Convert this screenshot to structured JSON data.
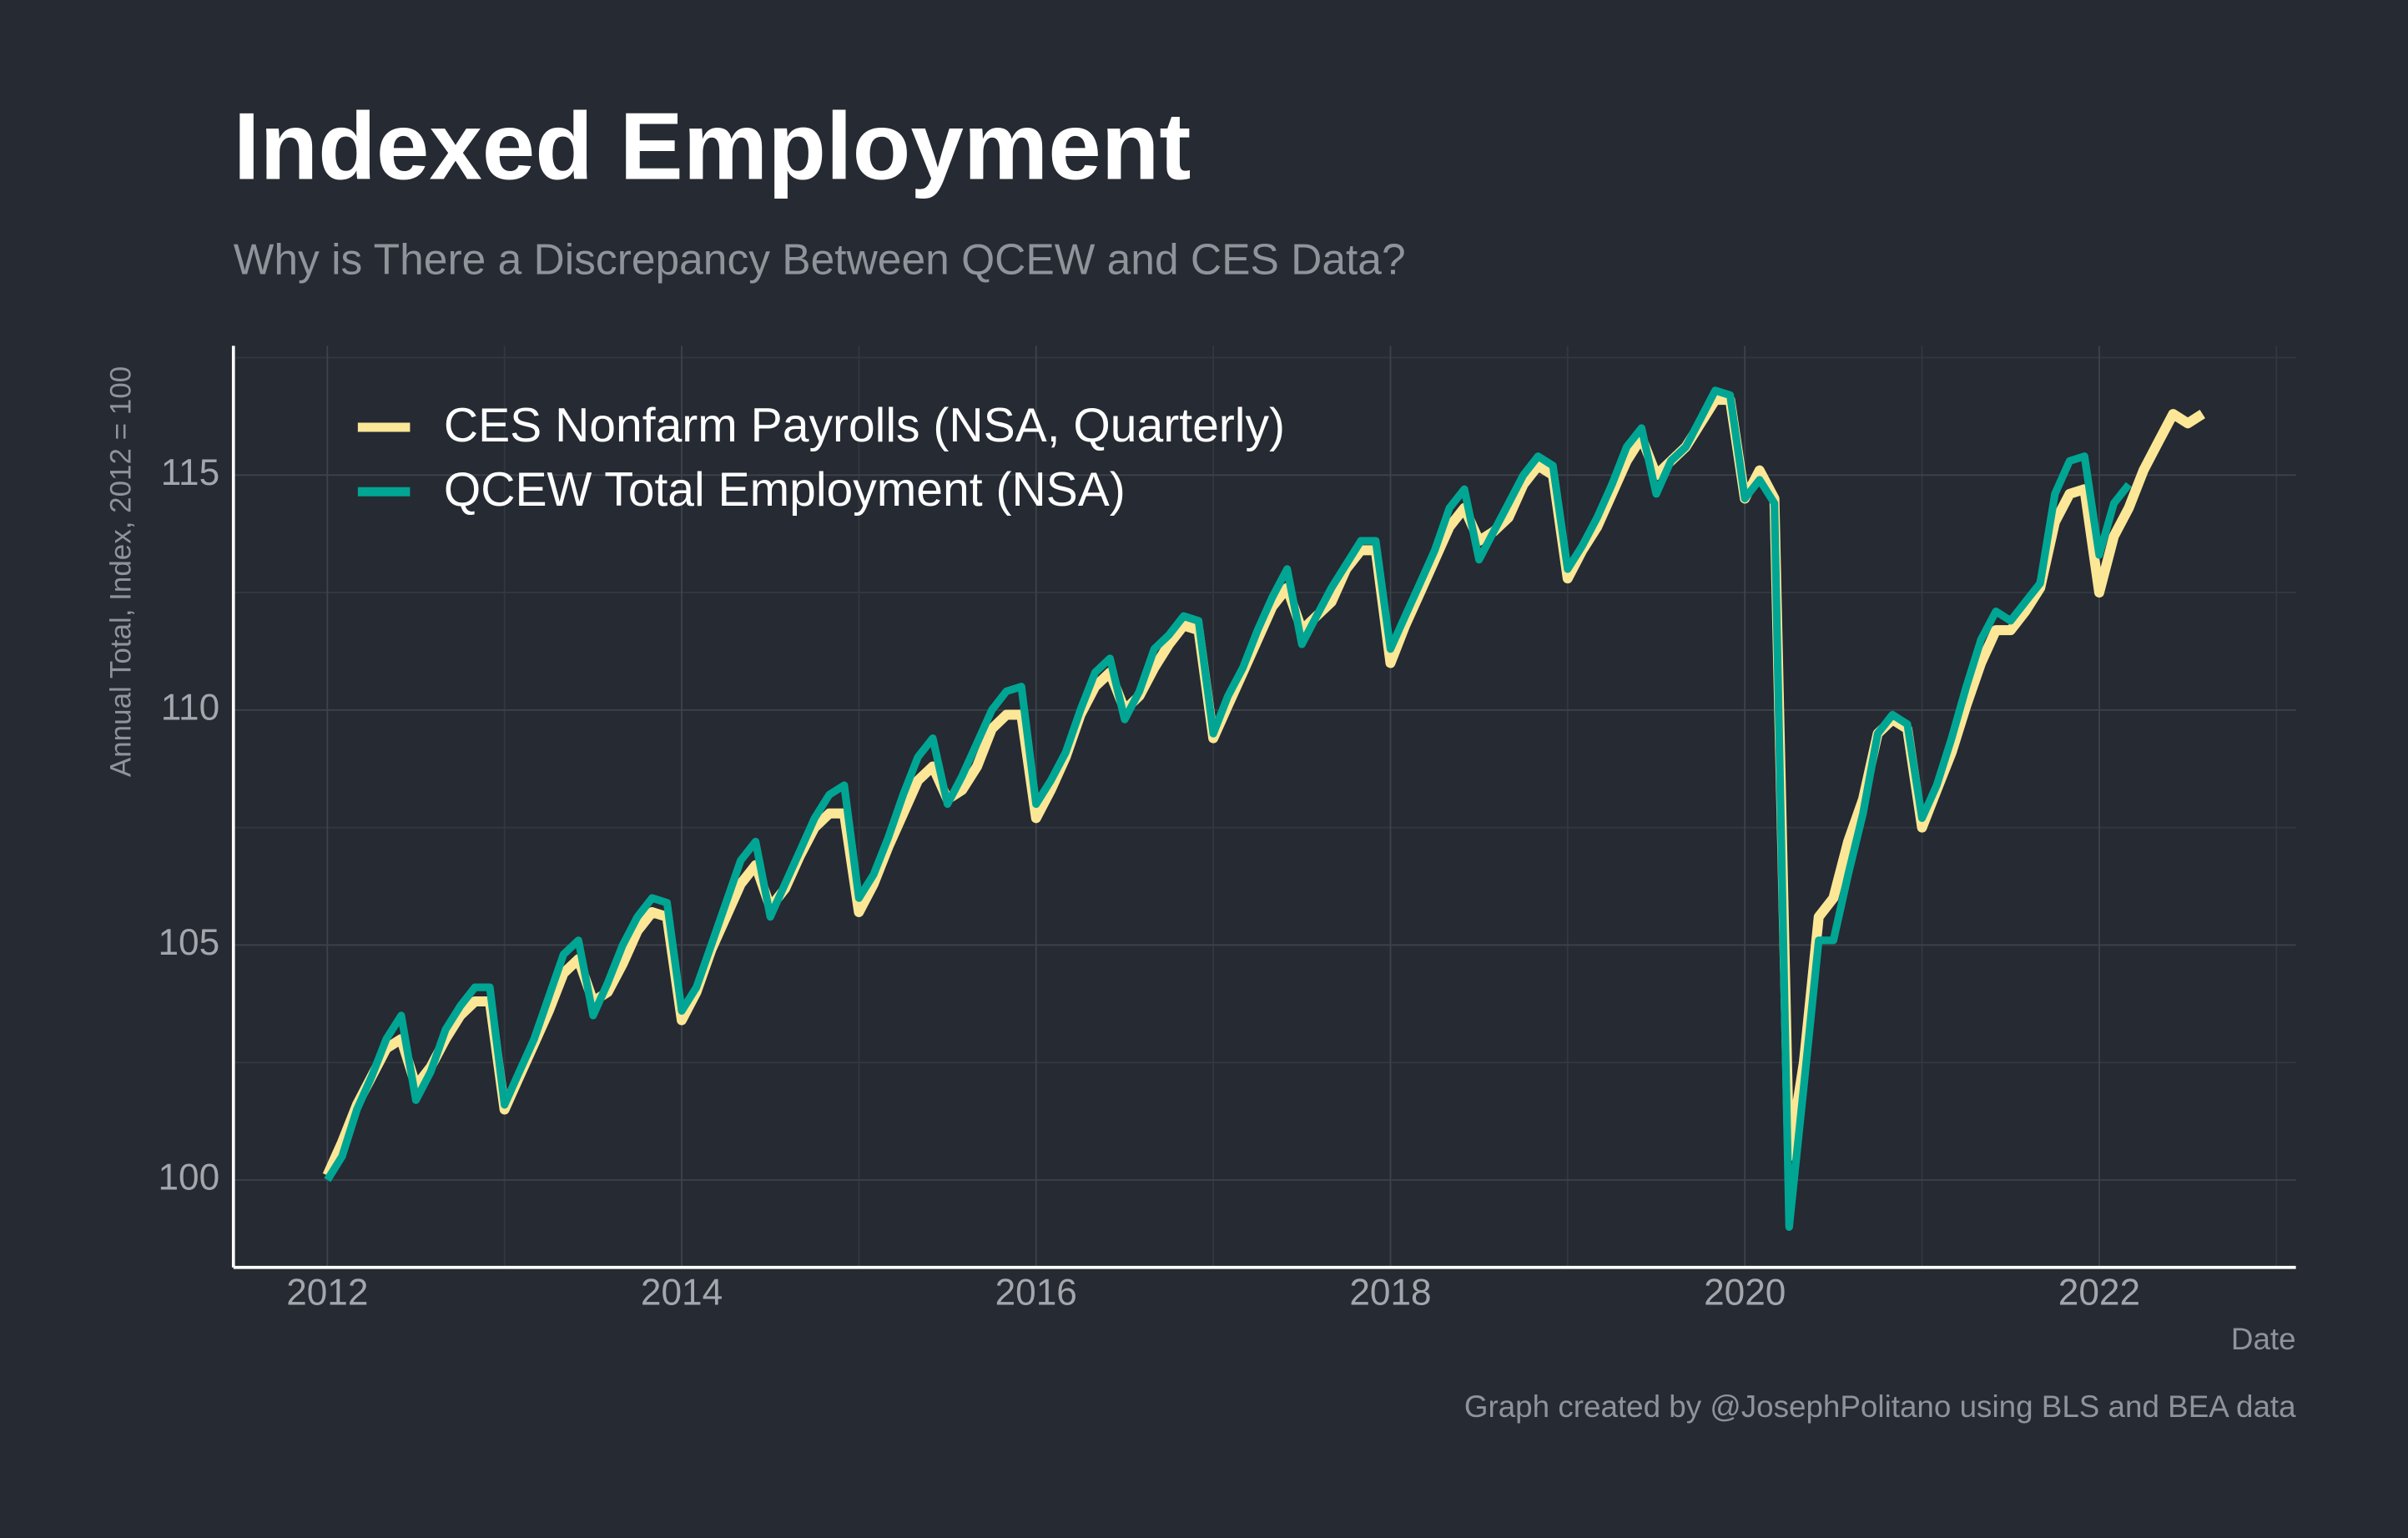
{
  "chart_data": {
    "type": "line",
    "title": "Indexed Employment",
    "subtitle": "Why is There a Discrepancy Between QCEW and CES Data?",
    "y_label": "Annual Total, Index, 2012 = 100",
    "x_label": "Date",
    "caption": "Graph created by @JosephPolitano using BLS and BEA data",
    "grid": true,
    "legend": "top-left",
    "xlim": [
      2011.47,
      2023.11
    ],
    "xticks": [
      2012,
      2014,
      2016,
      2018,
      2020,
      2022
    ],
    "ylim": [
      98.14,
      117.75
    ],
    "yticks": [
      100,
      105,
      110,
      115
    ],
    "x": [
      2012,
      2012.083,
      2012.167,
      2012.25,
      2012.333,
      2012.417,
      2012.5,
      2012.583,
      2012.667,
      2012.75,
      2012.833,
      2012.917,
      2013,
      2013.083,
      2013.167,
      2013.25,
      2013.333,
      2013.417,
      2013.5,
      2013.583,
      2013.667,
      2013.75,
      2013.833,
      2013.917,
      2014,
      2014.083,
      2014.167,
      2014.25,
      2014.333,
      2014.417,
      2014.5,
      2014.583,
      2014.667,
      2014.75,
      2014.833,
      2014.917,
      2015,
      2015.083,
      2015.167,
      2015.25,
      2015.333,
      2015.417,
      2015.5,
      2015.583,
      2015.667,
      2015.75,
      2015.833,
      2015.917,
      2016,
      2016.083,
      2016.167,
      2016.25,
      2016.333,
      2016.417,
      2016.5,
      2016.583,
      2016.667,
      2016.75,
      2016.833,
      2016.917,
      2017,
      2017.083,
      2017.167,
      2017.25,
      2017.333,
      2017.417,
      2017.5,
      2017.583,
      2017.667,
      2017.75,
      2017.833,
      2017.917,
      2018,
      2018.083,
      2018.167,
      2018.25,
      2018.333,
      2018.417,
      2018.5,
      2018.583,
      2018.667,
      2018.75,
      2018.833,
      2018.917,
      2019,
      2019.083,
      2019.167,
      2019.25,
      2019.333,
      2019.417,
      2019.5,
      2019.583,
      2019.667,
      2019.75,
      2019.833,
      2019.917,
      2020,
      2020.083,
      2020.167,
      2020.25,
      2020.333,
      2020.417,
      2020.5,
      2020.583,
      2020.667,
      2020.75,
      2020.833,
      2020.917,
      2021,
      2021.083,
      2021.167,
      2021.25,
      2021.333,
      2021.417,
      2021.5,
      2021.583,
      2021.667,
      2021.75,
      2021.833,
      2021.917,
      2022,
      2022.083,
      2022.167,
      2022.25,
      2022.333,
      2022.417,
      2022.5,
      2022.583
    ],
    "series": [
      {
        "name": "CES Nonfarm Payrolls (NSA, Quarterly)",
        "color": "#fbe796",
        "values": [
          100.1,
          100.8,
          101.6,
          102.2,
          102.8,
          103.0,
          102.0,
          102.4,
          103.0,
          103.5,
          103.8,
          103.8,
          101.5,
          102.2,
          102.9,
          103.6,
          104.4,
          104.7,
          103.8,
          104.0,
          104.6,
          105.3,
          105.7,
          105.6,
          103.4,
          104.0,
          104.9,
          105.6,
          106.3,
          106.7,
          105.8,
          106.2,
          106.9,
          107.5,
          107.8,
          107.8,
          105.7,
          106.3,
          107.1,
          107.8,
          108.5,
          108.8,
          108.1,
          108.3,
          108.8,
          109.6,
          109.9,
          109.9,
          107.7,
          108.3,
          109.0,
          109.9,
          110.5,
          110.8,
          110.0,
          110.3,
          110.9,
          111.4,
          111.8,
          111.7,
          109.4,
          110.1,
          110.8,
          111.5,
          112.2,
          112.6,
          111.7,
          112.0,
          112.3,
          113.0,
          113.4,
          113.4,
          111.0,
          111.8,
          112.5,
          113.2,
          113.9,
          114.3,
          113.6,
          113.8,
          114.1,
          114.8,
          115.2,
          115.0,
          112.8,
          113.4,
          113.9,
          114.6,
          115.3,
          115.8,
          115.0,
          115.3,
          115.6,
          116.1,
          116.6,
          116.6,
          114.5,
          115.1,
          114.5,
          100.5,
          102.5,
          105.6,
          106.0,
          107.2,
          108.1,
          109.5,
          109.8,
          109.6,
          107.5,
          108.3,
          109.1,
          110.1,
          111.0,
          111.7,
          111.7,
          112.1,
          112.6,
          114.0,
          114.6,
          114.7,
          112.5,
          113.7,
          114.3,
          115.1,
          115.7,
          116.3,
          116.1,
          116.3
        ]
      },
      {
        "name": "QCEW Total Employment (NSA)",
        "color": "#00a693",
        "values": [
          100.0,
          100.5,
          101.5,
          102.2,
          103.0,
          103.5,
          101.7,
          102.3,
          103.2,
          103.7,
          104.1,
          104.1,
          101.6,
          102.3,
          103.0,
          103.9,
          104.8,
          105.1,
          103.5,
          104.2,
          105.0,
          105.6,
          106.0,
          105.9,
          103.6,
          104.1,
          105.0,
          105.9,
          106.8,
          107.2,
          105.6,
          106.3,
          107.0,
          107.7,
          108.2,
          108.4,
          106.0,
          106.5,
          107.3,
          108.2,
          109.0,
          109.4,
          108.0,
          108.6,
          109.3,
          110.0,
          110.4,
          110.5,
          108.0,
          108.5,
          109.1,
          110.0,
          110.8,
          111.1,
          109.8,
          110.4,
          111.3,
          111.6,
          112.0,
          111.9,
          109.5,
          110.3,
          110.9,
          111.7,
          112.4,
          113.0,
          111.4,
          112.0,
          112.6,
          113.1,
          113.6,
          113.6,
          111.3,
          112.0,
          112.7,
          113.4,
          114.3,
          114.7,
          113.2,
          113.8,
          114.4,
          115.0,
          115.4,
          115.2,
          113.0,
          113.5,
          114.1,
          114.8,
          115.6,
          116.0,
          114.6,
          115.3,
          115.6,
          116.2,
          116.8,
          116.7,
          114.5,
          114.9,
          114.4,
          99.0,
          102.0,
          105.1,
          105.1,
          106.5,
          107.8,
          109.5,
          109.9,
          109.7,
          107.7,
          108.4,
          109.4,
          110.5,
          111.5,
          112.1,
          111.9,
          112.3,
          112.7,
          114.6,
          115.3,
          115.4,
          113.3,
          114.4,
          114.8,
          null,
          null,
          null,
          null,
          null
        ]
      }
    ]
  }
}
